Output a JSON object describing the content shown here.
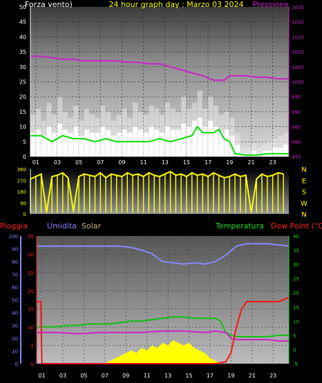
{
  "colors": {
    "wind": "#ffffff",
    "gust": "#e8e8e8",
    "avg_wind": "#00dd00",
    "pressure": "#cc22cc",
    "direction": "#ffff00",
    "rain": "#ff1010",
    "humidity": "#8888ff",
    "solar": "#ffff00",
    "temperature": "#10c010",
    "dewpoint": "#cc22cc",
    "axis_left": "#ffffff",
    "axis_pressure": "#cc22cc",
    "axis_rain": "#ff2020",
    "axis_hum": "#8888ff",
    "axis_temp": "#22dd22"
  },
  "chart_data": [
    {
      "type": "line",
      "title": "24 hour graph day : Marzo 03 2024",
      "ylabel": "Forza vento)",
      "y2label": "Pressione",
      "x_ticks": [
        "01",
        "03",
        "05",
        "07",
        "09",
        "11",
        "13",
        "15",
        "17",
        "19",
        "21",
        "23"
      ],
      "xlim": [
        0,
        24
      ],
      "ylim": [
        0,
        50
      ],
      "y_ticks": [
        0,
        5,
        10,
        15,
        20,
        25,
        30,
        35,
        40,
        45,
        50
      ],
      "y2lim": [
        975,
        1025
      ],
      "y2_ticks": [
        975,
        980,
        985,
        990,
        995,
        1000,
        1005,
        1010,
        1015,
        1020,
        1025
      ],
      "series": [
        {
          "key": "gust",
          "x": [
            0,
            0.5,
            1,
            1.5,
            2,
            2.5,
            3,
            3.5,
            4,
            4.5,
            5,
            5.5,
            6,
            6.5,
            7,
            7.5,
            8,
            8.5,
            9,
            9.5,
            10,
            10.5,
            11,
            11.5,
            12,
            12.5,
            13,
            13.5,
            14,
            14.5,
            15,
            15.5,
            16,
            16.5,
            17,
            17.5,
            18,
            18.5,
            19,
            19.5,
            20,
            20.5,
            21,
            21.5,
            22,
            22.5,
            23,
            23.5
          ],
          "values": [
            14,
            16,
            12,
            18,
            14,
            20,
            15,
            13,
            17,
            12,
            16,
            14,
            13,
            17,
            15,
            12,
            14,
            16,
            13,
            18,
            15,
            14,
            17,
            16,
            14,
            18,
            16,
            15,
            20,
            16,
            18,
            22,
            16,
            20,
            17,
            14,
            15,
            13,
            8,
            3,
            3,
            4,
            3,
            4,
            5,
            6,
            7,
            8
          ]
        },
        {
          "key": "wind",
          "x": [
            0,
            0.5,
            1,
            1.5,
            2,
            2.5,
            3,
            3.5,
            4,
            4.5,
            5,
            5.5,
            6,
            6.5,
            7,
            7.5,
            8,
            8.5,
            9,
            9.5,
            10,
            10.5,
            11,
            11.5,
            12,
            12.5,
            13,
            13.5,
            14,
            14.5,
            15,
            15.5,
            16,
            16.5,
            17,
            17.5,
            18,
            18.5,
            19,
            19.5,
            20,
            20.5,
            21,
            21.5,
            22,
            22.5,
            23,
            23.5
          ],
          "values": [
            8,
            9,
            7,
            10,
            8,
            11,
            9,
            8,
            10,
            7,
            9,
            8,
            8,
            10,
            9,
            7,
            8,
            9,
            8,
            10,
            9,
            8,
            10,
            9,
            8,
            10,
            9,
            9,
            11,
            10,
            12,
            13,
            10,
            12,
            10,
            8,
            9,
            7,
            4,
            1,
            1,
            2,
            1,
            2,
            2,
            3,
            3,
            4
          ]
        },
        {
          "key": "avg_wind",
          "x": [
            0,
            1,
            2,
            3,
            4,
            5,
            6,
            7,
            8,
            9,
            10,
            11,
            12,
            13,
            14,
            15,
            15.5,
            16,
            17,
            17.5,
            18,
            18.5,
            19,
            20,
            21,
            22,
            23,
            24
          ],
          "values": [
            7,
            7,
            5,
            7,
            6,
            6,
            5,
            6,
            5,
            5,
            5,
            5,
            6,
            5,
            6,
            7,
            10,
            8,
            8,
            9,
            6,
            5,
            1,
            0.5,
            0.5,
            1,
            1,
            1
          ]
        },
        {
          "key": "pressure",
          "x": [
            0,
            1,
            2,
            3,
            4,
            5,
            6,
            7,
            8,
            9,
            10,
            11,
            12,
            13,
            14,
            15,
            16,
            17,
            18,
            18.5,
            19,
            20,
            21,
            22,
            23,
            24
          ],
          "values": [
            1008.5,
            1008.5,
            1008,
            1007.5,
            1007.5,
            1007,
            1007,
            1007,
            1007,
            1006.5,
            1006.5,
            1006,
            1006,
            1005,
            1004,
            1003,
            1002,
            1000.5,
            1000.5,
            1002,
            1002,
            1002,
            1001.5,
            1001.5,
            1001,
            1001
          ]
        }
      ]
    },
    {
      "type": "line",
      "ylim": [
        0,
        360
      ],
      "y_ticks": [
        0,
        90,
        180,
        270,
        360
      ],
      "dir_labels": [
        "N",
        "W",
        "S",
        "E",
        "N"
      ],
      "series": [
        {
          "key": "direction",
          "x": [
            0,
            0.5,
            1,
            1.5,
            2,
            2.5,
            3,
            3.5,
            4,
            4.5,
            5,
            5.5,
            6,
            6.5,
            7,
            7.5,
            8,
            8.5,
            9,
            9.5,
            10,
            10.5,
            11,
            11.5,
            12,
            12.5,
            13,
            13.5,
            14,
            14.5,
            15,
            15.5,
            16,
            16.5,
            17,
            17.5,
            18,
            18.5,
            19,
            19.5,
            20,
            20.5,
            21,
            21.5,
            22,
            22.5,
            23,
            23.5
          ],
          "values": [
            280,
            300,
            320,
            10,
            300,
            310,
            330,
            290,
            20,
            300,
            320,
            310,
            300,
            330,
            290,
            320,
            310,
            300,
            330,
            310,
            320,
            300,
            330,
            310,
            300,
            320,
            340,
            310,
            320,
            300,
            330,
            310,
            320,
            300,
            330,
            310,
            290,
            300,
            320,
            300,
            310,
            10,
            280,
            320,
            300,
            310,
            330,
            320
          ]
        }
      ]
    },
    {
      "type": "line",
      "labels": [
        "Pioggia",
        "Umidita",
        "Solar",
        "Temperatura",
        "Dew Point (°C)"
      ],
      "x_ticks": [
        "01",
        "03",
        "05",
        "07",
        "09",
        "11",
        "13",
        "15",
        "17",
        "19",
        "21",
        "23"
      ],
      "xlim": [
        0,
        24
      ],
      "rain_ticks": [
        0,
        5,
        10,
        15,
        20,
        25,
        30,
        35
      ],
      "rain_lim": [
        0,
        35
      ],
      "hum_ticks": [
        0,
        10,
        20,
        30,
        40,
        50,
        60,
        70,
        80,
        90,
        100
      ],
      "hum_lim": [
        0,
        100
      ],
      "temp_ticks": [
        -5,
        0,
        5,
        10,
        15,
        20,
        25,
        30,
        35,
        40
      ],
      "temp_lim": [
        -5,
        40
      ],
      "series": [
        {
          "key": "rain",
          "x": [
            0,
            0.4,
            0.5,
            17,
            18,
            18.5,
            19,
            19.5,
            20,
            21,
            22,
            23,
            23.5,
            23.8,
            24
          ],
          "values": [
            17,
            17,
            0,
            0,
            0.5,
            3,
            10,
            15,
            17,
            17,
            17,
            17,
            17.5,
            18,
            18
          ]
        },
        {
          "key": "humidity",
          "x": [
            0,
            2,
            4,
            6,
            8,
            9,
            10,
            11,
            12,
            13,
            14,
            15,
            16,
            17,
            18,
            19,
            20,
            21,
            22,
            23,
            24
          ],
          "values": [
            92,
            92,
            92,
            92,
            92,
            91,
            89,
            86,
            80,
            79,
            78,
            79,
            78,
            80,
            85,
            92,
            94,
            94,
            94,
            93,
            92
          ]
        },
        {
          "key": "temperature",
          "x": [
            0,
            1,
            2,
            3,
            4,
            5,
            6,
            7,
            8,
            9,
            10,
            11,
            12,
            13,
            14,
            15,
            16,
            17,
            17.5,
            18,
            18.5,
            19,
            20,
            21,
            22,
            23,
            24
          ],
          "values": [
            8,
            8,
            8,
            8.5,
            8.5,
            9,
            9,
            9,
            9.5,
            10,
            10,
            10.5,
            11,
            11.5,
            11.5,
            11,
            11,
            11,
            10,
            6,
            5,
            4.5,
            4.5,
            4.5,
            4.5,
            5,
            5
          ]
        },
        {
          "key": "dewpoint",
          "x": [
            0,
            2,
            4,
            6,
            8,
            10,
            12,
            14,
            16,
            17,
            18,
            18.5,
            19,
            20,
            21,
            22,
            23,
            24
          ],
          "values": [
            6,
            6,
            5.5,
            6,
            6,
            6,
            6.5,
            6.5,
            6,
            6.5,
            6,
            4,
            3.5,
            3.5,
            3.5,
            3.5,
            3,
            3
          ]
        },
        {
          "key": "solar",
          "x": [
            6.5,
            7,
            7.5,
            8,
            8.5,
            9,
            9.5,
            10,
            10.5,
            11,
            11.5,
            12,
            12.5,
            13,
            13.5,
            14,
            14.5,
            15,
            15.5,
            16,
            16.5,
            17,
            17.5
          ],
          "values": [
            0,
            1,
            2,
            3,
            4,
            5,
            4,
            6,
            5,
            7,
            6,
            8,
            7,
            9,
            8,
            7,
            8,
            6,
            5,
            4,
            2,
            1,
            0
          ]
        }
      ]
    }
  ]
}
